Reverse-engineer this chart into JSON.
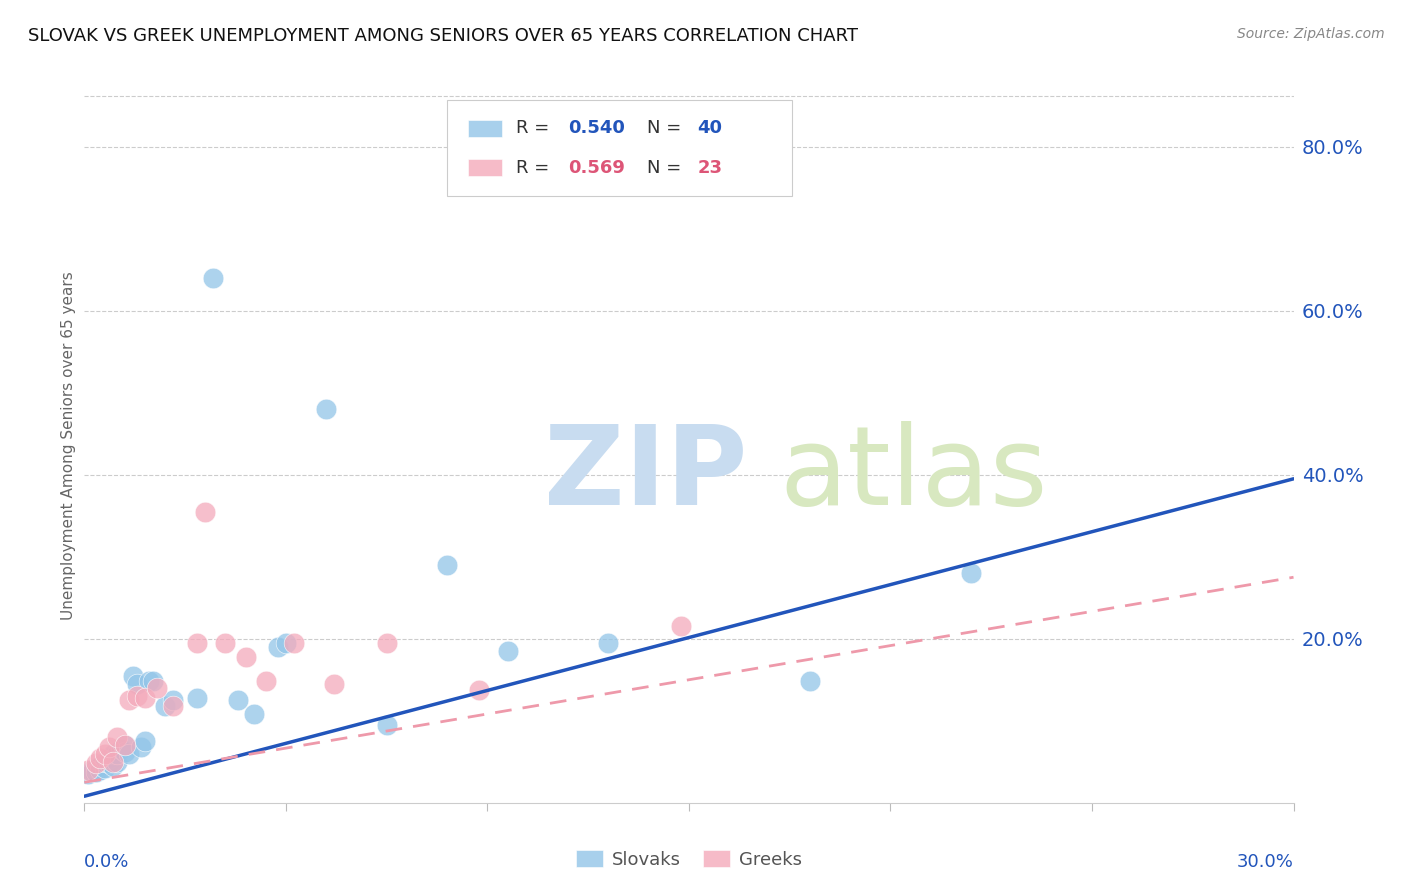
{
  "title": "SLOVAK VS GREEK UNEMPLOYMENT AMONG SENIORS OVER 65 YEARS CORRELATION CHART",
  "source": "Source: ZipAtlas.com",
  "ylabel": "Unemployment Among Seniors over 65 years",
  "ytick_labels": [
    "80.0%",
    "60.0%",
    "40.0%",
    "20.0%"
  ],
  "ytick_values": [
    0.8,
    0.6,
    0.4,
    0.2
  ],
  "xlim": [
    0.0,
    0.3
  ],
  "ylim": [
    0.0,
    0.87
  ],
  "slovak_color": "#92C5E8",
  "greek_color": "#F4AABB",
  "slovak_line_color": "#2255BB",
  "greek_line_color": "#EE99AA",
  "slovak_R": "0.540",
  "slovak_N": "40",
  "greek_R": "0.569",
  "greek_N": "23",
  "slovak_line_x": [
    0.0,
    0.3
  ],
  "slovak_line_y": [
    0.008,
    0.395
  ],
  "greek_line_x": [
    0.0,
    0.3
  ],
  "greek_line_y": [
    0.025,
    0.275
  ],
  "slovak_points_x": [
    0.001,
    0.002,
    0.002,
    0.003,
    0.003,
    0.004,
    0.004,
    0.005,
    0.005,
    0.006,
    0.006,
    0.007,
    0.007,
    0.008,
    0.008,
    0.009,
    0.01,
    0.01,
    0.011,
    0.012,
    0.013,
    0.014,
    0.015,
    0.016,
    0.017,
    0.02,
    0.022,
    0.028,
    0.032,
    0.038,
    0.042,
    0.048,
    0.05,
    0.06,
    0.075,
    0.09,
    0.105,
    0.13,
    0.18,
    0.22
  ],
  "slovak_points_y": [
    0.035,
    0.04,
    0.038,
    0.042,
    0.038,
    0.045,
    0.04,
    0.043,
    0.05,
    0.048,
    0.055,
    0.045,
    0.06,
    0.05,
    0.06,
    0.065,
    0.062,
    0.07,
    0.06,
    0.155,
    0.145,
    0.068,
    0.075,
    0.148,
    0.148,
    0.118,
    0.125,
    0.128,
    0.64,
    0.125,
    0.108,
    0.19,
    0.195,
    0.48,
    0.095,
    0.29,
    0.185,
    0.195,
    0.148,
    0.28
  ],
  "greek_points_x": [
    0.001,
    0.003,
    0.004,
    0.005,
    0.006,
    0.007,
    0.008,
    0.01,
    0.011,
    0.013,
    0.015,
    0.018,
    0.022,
    0.028,
    0.03,
    0.035,
    0.04,
    0.045,
    0.052,
    0.062,
    0.075,
    0.098,
    0.148
  ],
  "greek_points_y": [
    0.04,
    0.048,
    0.055,
    0.06,
    0.068,
    0.05,
    0.08,
    0.07,
    0.125,
    0.13,
    0.128,
    0.14,
    0.118,
    0.195,
    0.355,
    0.195,
    0.178,
    0.148,
    0.195,
    0.145,
    0.195,
    0.138,
    0.215
  ]
}
